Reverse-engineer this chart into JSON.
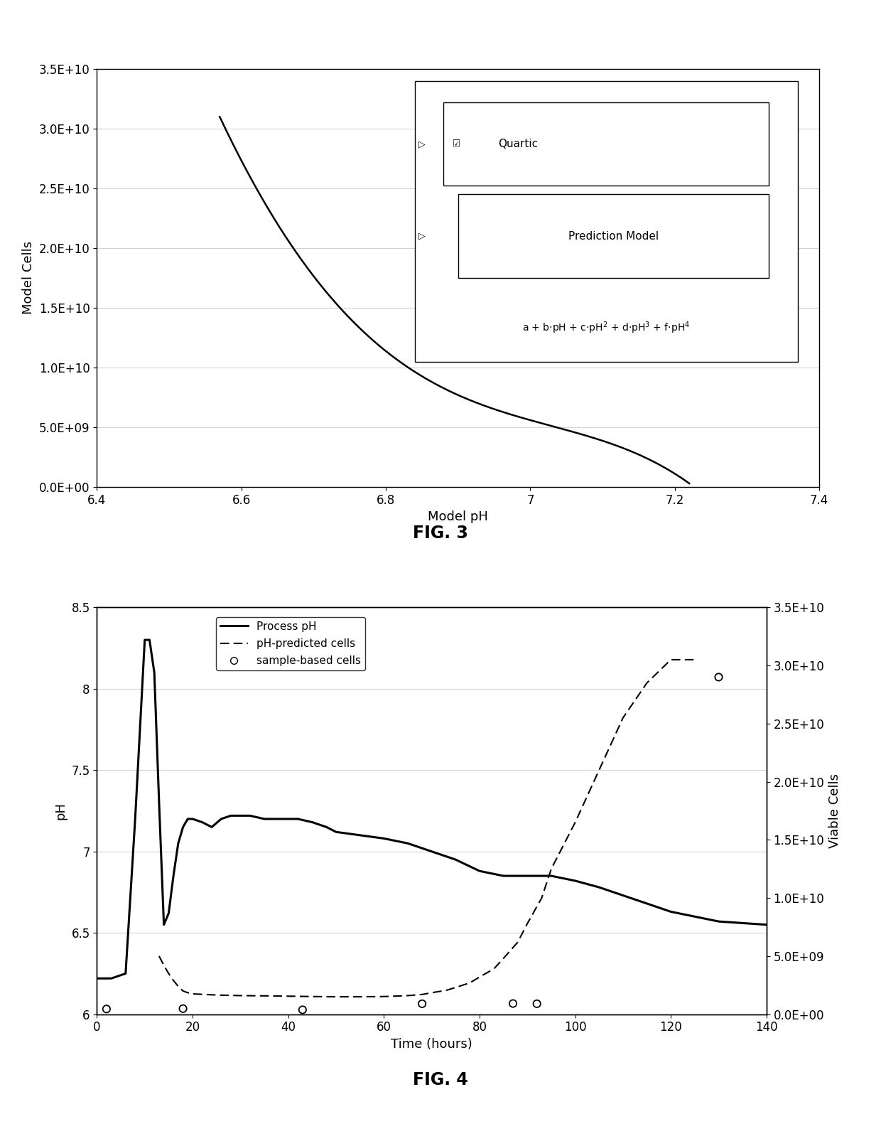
{
  "fig3": {
    "xlabel": "Model pH",
    "ylabel": "Model Cells",
    "xlim": [
      6.4,
      7.4
    ],
    "ylim": [
      0,
      35000000000.0
    ],
    "yticks": [
      0,
      5000000000.0,
      10000000000.0,
      15000000000.0,
      20000000000.0,
      25000000000.0,
      30000000000.0,
      35000000000.0
    ],
    "ytick_labels": [
      "0.0E+00",
      "5.0E+09",
      "1.0E+10",
      "1.5E+10",
      "2.0E+10",
      "2.5E+10",
      "3.0E+10",
      "3.5E+10"
    ],
    "xticks": [
      6.4,
      6.6,
      6.8,
      7.0,
      7.2,
      7.4
    ],
    "xtick_labels": [
      "6.4",
      "6.6",
      "6.8",
      "7",
      "7.2",
      "7.4"
    ],
    "ph_range_start": 6.57,
    "ph_range_end": 7.22,
    "fig_label": "FIG. 3"
  },
  "fig4": {
    "xlabel": "Time (hours)",
    "ylabel_left": "pH",
    "ylabel_right": "Viable Cells",
    "xlim": [
      0,
      140
    ],
    "ylim_left": [
      6.0,
      8.5
    ],
    "ylim_right": [
      0,
      35000000000.0
    ],
    "yticks_left": [
      6.0,
      6.5,
      7.0,
      7.5,
      8.0,
      8.5
    ],
    "ytick_labels_left": [
      "6",
      "6.5",
      "7",
      "7.5",
      "8",
      "8.5"
    ],
    "yticks_right": [
      0,
      5000000000.0,
      10000000000.0,
      15000000000.0,
      20000000000.0,
      25000000000.0,
      30000000000.0,
      35000000000.0
    ],
    "ytick_labels_right": [
      "0.0E+00",
      "5.0E+09",
      "1.0E+10",
      "1.5E+10",
      "2.0E+10",
      "2.5E+10",
      "3.0E+10",
      "3.5E+10"
    ],
    "xticks": [
      0,
      20,
      40,
      60,
      80,
      100,
      120,
      140
    ],
    "ph_time": [
      0,
      3,
      6,
      8,
      10,
      11,
      12,
      13,
      14,
      15,
      16,
      17,
      18,
      19,
      20,
      22,
      24,
      26,
      28,
      30,
      32,
      35,
      38,
      40,
      42,
      45,
      48,
      50,
      55,
      60,
      65,
      70,
      75,
      80,
      85,
      90,
      95,
      100,
      105,
      110,
      115,
      120,
      125,
      130,
      135,
      140
    ],
    "ph_values": [
      6.22,
      6.22,
      6.25,
      7.2,
      8.3,
      8.3,
      8.1,
      7.3,
      6.55,
      6.62,
      6.85,
      7.05,
      7.15,
      7.2,
      7.2,
      7.18,
      7.15,
      7.2,
      7.22,
      7.22,
      7.22,
      7.2,
      7.2,
      7.2,
      7.2,
      7.18,
      7.15,
      7.12,
      7.1,
      7.08,
      7.05,
      7.0,
      6.95,
      6.88,
      6.85,
      6.85,
      6.85,
      6.82,
      6.78,
      6.73,
      6.68,
      6.63,
      6.6,
      6.57,
      6.56,
      6.55
    ],
    "pred_time": [
      13,
      14,
      15,
      16,
      17,
      18,
      19,
      20,
      25,
      30,
      35,
      40,
      45,
      50,
      55,
      60,
      62,
      65,
      68,
      70,
      73,
      75,
      78,
      80,
      83,
      85,
      88,
      90,
      93,
      95,
      100,
      105,
      110,
      115,
      120,
      125
    ],
    "pred_cells": [
      5000000000.0,
      4200000000.0,
      3500000000.0,
      2900000000.0,
      2400000000.0,
      2000000000.0,
      1850000000.0,
      1750000000.0,
      1650000000.0,
      1600000000.0,
      1580000000.0,
      1550000000.0,
      1520000000.0,
      1500000000.0,
      1500000000.0,
      1520000000.0,
      1550000000.0,
      1600000000.0,
      1700000000.0,
      1850000000.0,
      2050000000.0,
      2300000000.0,
      2700000000.0,
      3200000000.0,
      3900000000.0,
      4800000000.0,
      6200000000.0,
      7800000000.0,
      10000000000.0,
      12500000000.0,
      16500000000.0,
      21000000000.0,
      25500000000.0,
      28500000000.0,
      30500000000.0,
      30500000000.0
    ],
    "sample_time": [
      2,
      18,
      43,
      68,
      87,
      92,
      130
    ],
    "sample_cells": [
      450000000.0,
      480000000.0,
      380000000.0,
      900000000.0,
      920000000.0,
      900000000.0,
      29000000000.0
    ],
    "fig_label": "FIG. 4",
    "legend_process_ph": "Process pH",
    "legend_predicted": "pH-predicted cells",
    "legend_sample": "sample-based cells"
  }
}
